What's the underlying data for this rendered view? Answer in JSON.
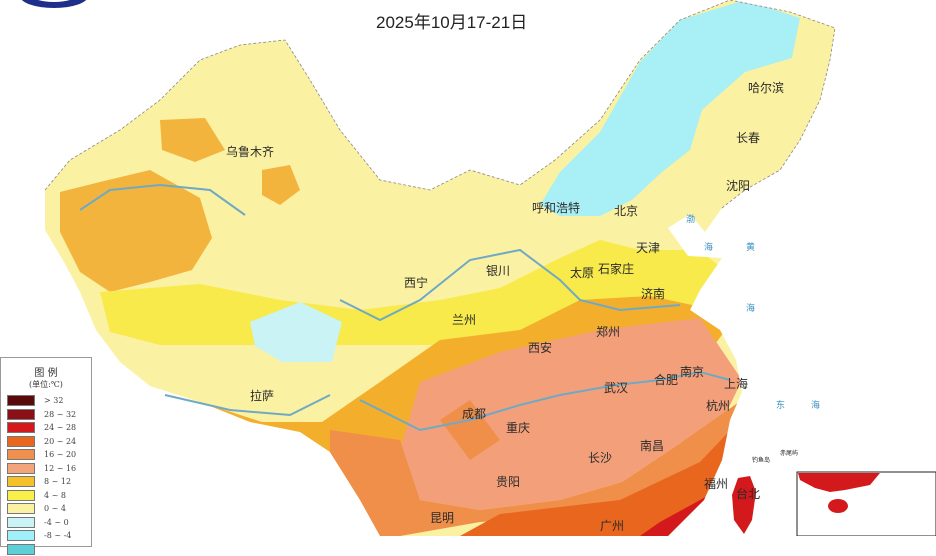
{
  "title": "2025年10月17-21日",
  "legend": {
    "title": "图 例",
    "unit": "(单位:℃)",
    "items": [
      {
        "label": "> 32",
        "color": "#5a0a0a"
      },
      {
        "label": "28 ~ 32",
        "color": "#8b0f17"
      },
      {
        "label": "24 ~ 28",
        "color": "#d3191b"
      },
      {
        "label": "20 ~ 24",
        "color": "#e8661e"
      },
      {
        "label": "16 ~ 20",
        "color": "#f0904e"
      },
      {
        "label": "12 ~ 16",
        "color": "#f4a47a"
      },
      {
        "label": "8 ~ 12",
        "color": "#f4c12a"
      },
      {
        "label": "4 ~ 8",
        "color": "#f8ef48"
      },
      {
        "label": "0 ~ 4",
        "color": "#fbf1a2"
      },
      {
        "label": "-4 ~ 0",
        "color": "#c9f3f4"
      },
      {
        "label": "-8 ~ -4",
        "color": "#9ff0f8"
      },
      {
        "label": "",
        "color": "#5ccfd8"
      }
    ]
  },
  "cities": {
    "urumqi": "乌鲁木齐",
    "harbin": "哈尔滨",
    "changchun": "长春",
    "shenyang": "沈阳",
    "beijing": "北京",
    "tianjin": "天津",
    "hohhot": "呼和浩特",
    "shijiazhuang": "石家庄",
    "taiyuan": "太原",
    "yinchuan": "银川",
    "xining": "西宁",
    "lanzhou": "兰州",
    "jinan": "济南",
    "zhengzhou": "郑州",
    "xian": "西安",
    "nanjing": "南京",
    "hefei": "合肥",
    "shanghai": "上海",
    "wuhan": "武汉",
    "hangzhou": "杭州",
    "chengdu": "成都",
    "chongqing": "重庆",
    "changsha": "长沙",
    "nanchang": "南昌",
    "guiyang": "贵阳",
    "fuzhou": "福州",
    "taipei": "台北",
    "kunming": "昆明",
    "guangzhou": "广州",
    "lhasa": "拉萨"
  },
  "seas": {
    "bo": "渤",
    "bohai_hai": "海",
    "huang": "黄",
    "huang_hai": "海",
    "dong": "东",
    "dong_hai": "海"
  },
  "islands": {
    "diaoyu": "钓鱼岛",
    "chiwei": "赤尾屿"
  }
}
